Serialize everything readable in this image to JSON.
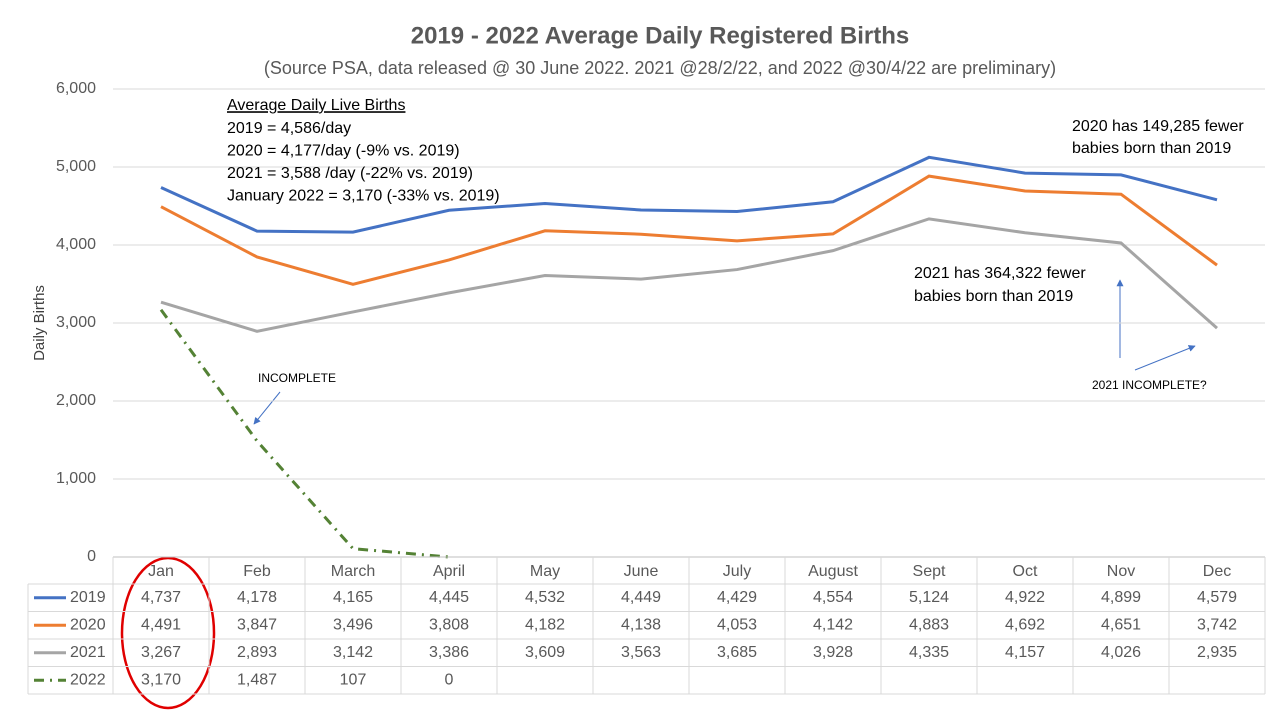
{
  "chart_data": {
    "type": "line",
    "title": "2019 - 2022 Average Daily Registered Births",
    "subtitle": "(Source PSA, data released @ 30 June 2022.  2021 @28/2/22, and 2022 @30/4/22 are preliminary)",
    "y_label": "Daily Births",
    "categories": [
      "Jan",
      "Feb",
      "March",
      "April",
      "May",
      "June",
      "July",
      "August",
      "Sept",
      "Oct",
      "Nov",
      "Dec"
    ],
    "series": [
      {
        "name": "2019",
        "color": "#4472c4",
        "values": [
          4737,
          4178,
          4165,
          4445,
          4532,
          4449,
          4429,
          4554,
          5124,
          4922,
          4899,
          4579
        ],
        "value_labels": [
          "4,737",
          "4,178",
          "4,165",
          "4,445",
          "4,532",
          "4,449",
          "4,429",
          "4,554",
          "5,124",
          "4,922",
          "4,899",
          "4,579"
        ]
      },
      {
        "name": "2020",
        "color": "#ed7d31",
        "values": [
          4491,
          3847,
          3496,
          3808,
          4182,
          4138,
          4053,
          4142,
          4883,
          4692,
          4651,
          3742
        ],
        "value_labels": [
          "4,491",
          "3,847",
          "3,496",
          "3,808",
          "4,182",
          "4,138",
          "4,053",
          "4,142",
          "4,883",
          "4,692",
          "4,651",
          "3,742"
        ]
      },
      {
        "name": "2021",
        "color": "#a5a5a5",
        "values": [
          3267,
          2893,
          3142,
          3386,
          3609,
          3563,
          3685,
          3928,
          4335,
          4157,
          4026,
          2935
        ],
        "value_labels": [
          "3,267",
          "2,893",
          "3,142",
          "3,386",
          "3,609",
          "3,563",
          "3,685",
          "3,928",
          "4,335",
          "4,157",
          "4,026",
          "2,935"
        ]
      },
      {
        "name": "2022",
        "color": "#548235",
        "dash": "dash-dot",
        "values": [
          3170,
          1487,
          107,
          0,
          null,
          null,
          null,
          null,
          null,
          null,
          null,
          null
        ],
        "value_labels": [
          "3,170",
          "1,487",
          "107",
          "0",
          null,
          null,
          null,
          null,
          null,
          null,
          null,
          null
        ]
      }
    ],
    "ylim": [
      0,
      6000
    ],
    "yticks": [
      0,
      {
        "value": 1000,
        "label": "1,000"
      },
      {
        "value": 2000,
        "label": "2,000"
      },
      {
        "value": 3000,
        "label": "3,000"
      },
      {
        "value": 4000,
        "label": "4,000"
      },
      {
        "value": 5000,
        "label": "5,000"
      },
      {
        "value": 6000,
        "label": "6,000"
      }
    ],
    "grid": true,
    "annotations": {
      "average_box": {
        "heading": "Average Daily Live Births",
        "lines": [
          "2019 = 4,586/day",
          "2020 = 4,177/day (-9% vs. 2019)",
          "2021 = 3,588 /day (-22% vs. 2019)",
          "January 2022 = 3,170 (-33% vs. 2019)"
        ]
      },
      "note_2020": [
        "2020 has 149,285 fewer",
        "babies born than 2019"
      ],
      "note_2021": [
        "2021 has 364,322 fewer",
        "babies born than 2019"
      ],
      "incomplete": "INCOMPLETE",
      "incomplete_2021": "2021 INCOMPLETE?"
    }
  }
}
